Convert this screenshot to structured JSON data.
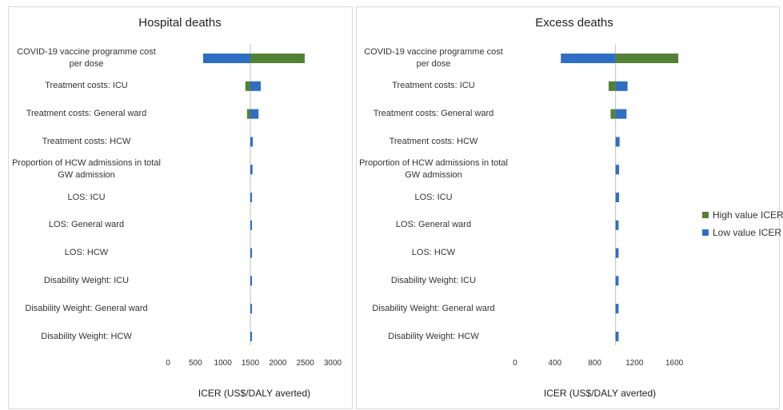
{
  "colors": {
    "high": "#538135",
    "low": "#2e6fc4",
    "baseline": "#bfbfbf"
  },
  "legend": {
    "items": [
      {
        "key": "high",
        "label": "High value ICER"
      },
      {
        "key": "low",
        "label": "Low value ICER"
      }
    ]
  },
  "chart_data": [
    {
      "type": "bar",
      "orientation": "horizontal",
      "variant": "tornado",
      "title": "Hospital deaths",
      "xlabel": "ICER (US$/DALY averted)",
      "ylabel": "",
      "xlim": [
        0,
        3000
      ],
      "xticks": [
        "0",
        "500",
        "1000",
        "1500",
        "2000",
        "2500",
        "3000"
      ],
      "baseline": 1500,
      "categories": [
        "COVID-19 vaccine programme cost per dose",
        "Treatment costs: ICU",
        "Treatment costs: General ward",
        "Treatment costs: HCW",
        "Proportion of HCW admissions in total GW admission",
        "LOS: ICU",
        "LOS: General ward",
        "LOS: HCW",
        "Disability Weight: ICU",
        "Disability Weight: General ward",
        "Disability Weight: HCW"
      ],
      "series": [
        {
          "name": "High value ICER",
          "values": [
            2490,
            1410,
            1440,
            1500,
            1500,
            1500,
            1500,
            1500,
            1500,
            1500,
            1500
          ]
        },
        {
          "name": "Low value ICER",
          "values": [
            640,
            1690,
            1650,
            1545,
            1540,
            1530,
            1530,
            1530,
            1530,
            1530,
            1530
          ]
        }
      ],
      "grid": false,
      "legend": "right"
    },
    {
      "type": "bar",
      "orientation": "horizontal",
      "variant": "tornado",
      "title": "Excess deaths",
      "xlabel": "ICER (US$/DALY averted)",
      "ylabel": "",
      "xlim": [
        0,
        1800
      ],
      "xticks": [
        "0",
        "400",
        "800",
        "1200",
        "1600"
      ],
      "baseline": 1010,
      "categories": [
        "COVID-19 vaccine programme cost per dose",
        "Treatment costs: ICU",
        "Treatment costs: General ward",
        "Treatment costs: HCW",
        "Proportion of HCW admissions in total GW admission",
        "LOS: ICU",
        "LOS: General ward",
        "LOS: HCW",
        "Disability Weight: ICU",
        "Disability Weight: General ward",
        "Disability Weight: HCW"
      ],
      "series": [
        {
          "name": "High value ICER",
          "values": [
            1640,
            940,
            960,
            1010,
            1010,
            1010,
            1010,
            1010,
            1010,
            1010,
            1010
          ]
        },
        {
          "name": "Low value ICER",
          "values": [
            460,
            1130,
            1120,
            1050,
            1045,
            1045,
            1040,
            1040,
            1040,
            1040,
            1040
          ]
        }
      ],
      "grid": false,
      "legend": "right"
    }
  ]
}
